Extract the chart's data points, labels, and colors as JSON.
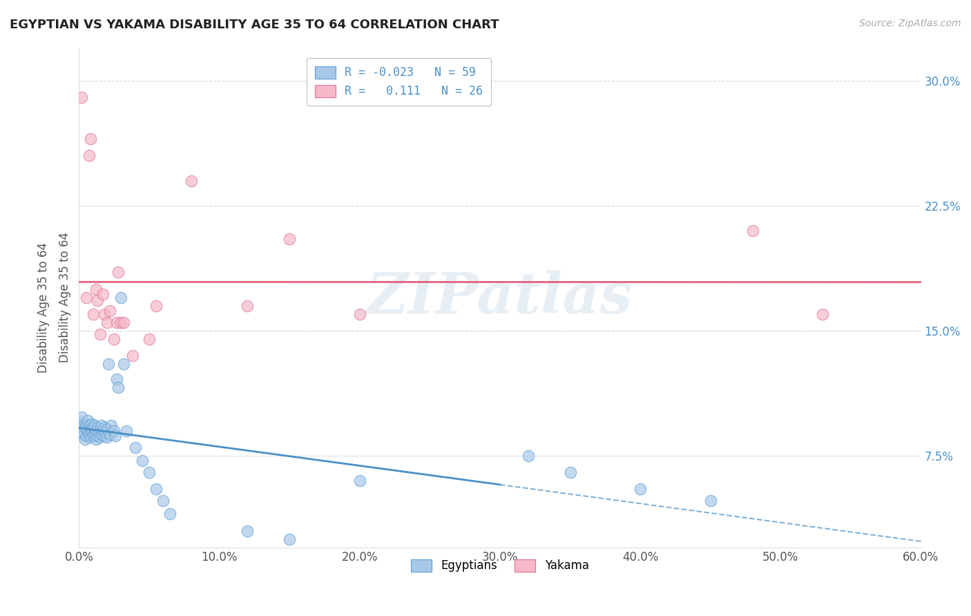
{
  "title": "EGYPTIAN VS YAKAMA DISABILITY AGE 35 TO 64 CORRELATION CHART",
  "source": "Source: ZipAtlas.com",
  "ylabel": "Disability Age 35 to 64",
  "xlim": [
    0.0,
    0.6
  ],
  "ylim": [
    0.02,
    0.32
  ],
  "xticks": [
    0.0,
    0.1,
    0.2,
    0.3,
    0.4,
    0.5,
    0.6
  ],
  "xticklabels": [
    "0.0%",
    "10.0%",
    "20.0%",
    "30.0%",
    "40.0%",
    "50.0%",
    "60.0%"
  ],
  "yticks": [
    0.075,
    0.15,
    0.225,
    0.3
  ],
  "yticklabels": [
    "7.5%",
    "15.0%",
    "22.5%",
    "30.0%"
  ],
  "egyptians_color": "#a8c8e8",
  "egyptians_edge": "#5a9fd4",
  "yakama_color": "#f5b8c8",
  "yakama_edge": "#e07090",
  "trend_egyptian_color": "#4a90c8",
  "trend_yakama_color": "#e06080",
  "R_egyptian": -0.023,
  "N_egyptian": 59,
  "R_yakama": 0.111,
  "N_yakama": 26,
  "watermark": "ZIPatlas",
  "background_color": "#ffffff",
  "grid_color": "#cccccc",
  "egyptians_x": [
    0.001,
    0.002,
    0.002,
    0.003,
    0.003,
    0.004,
    0.004,
    0.005,
    0.005,
    0.006,
    0.006,
    0.007,
    0.007,
    0.008,
    0.008,
    0.009,
    0.009,
    0.01,
    0.01,
    0.011,
    0.011,
    0.012,
    0.012,
    0.013,
    0.013,
    0.014,
    0.015,
    0.015,
    0.016,
    0.016,
    0.017,
    0.018,
    0.018,
    0.019,
    0.02,
    0.02,
    0.021,
    0.022,
    0.023,
    0.025,
    0.026,
    0.027,
    0.028,
    0.03,
    0.032,
    0.034,
    0.04,
    0.045,
    0.05,
    0.055,
    0.06,
    0.065,
    0.12,
    0.15,
    0.2,
    0.32,
    0.35,
    0.4,
    0.45
  ],
  "egyptians_y": [
    0.095,
    0.09,
    0.098,
    0.088,
    0.093,
    0.085,
    0.092,
    0.087,
    0.094,
    0.09,
    0.096,
    0.088,
    0.093,
    0.086,
    0.091,
    0.089,
    0.094,
    0.087,
    0.092,
    0.088,
    0.093,
    0.085,
    0.09,
    0.087,
    0.092,
    0.089,
    0.086,
    0.091,
    0.088,
    0.093,
    0.09,
    0.087,
    0.092,
    0.089,
    0.086,
    0.091,
    0.13,
    0.088,
    0.093,
    0.09,
    0.087,
    0.121,
    0.116,
    0.17,
    0.13,
    0.09,
    0.08,
    0.072,
    0.065,
    0.055,
    0.048,
    0.04,
    0.03,
    0.025,
    0.06,
    0.075,
    0.065,
    0.055,
    0.048
  ],
  "yakama_x": [
    0.002,
    0.005,
    0.007,
    0.008,
    0.01,
    0.012,
    0.013,
    0.015,
    0.017,
    0.018,
    0.02,
    0.022,
    0.025,
    0.027,
    0.028,
    0.03,
    0.032,
    0.038,
    0.05,
    0.055,
    0.08,
    0.12,
    0.15,
    0.2,
    0.48,
    0.53
  ],
  "yakama_y": [
    0.29,
    0.17,
    0.255,
    0.265,
    0.16,
    0.175,
    0.168,
    0.148,
    0.172,
    0.16,
    0.155,
    0.162,
    0.145,
    0.155,
    0.185,
    0.155,
    0.155,
    0.135,
    0.145,
    0.165,
    0.24,
    0.165,
    0.205,
    0.16,
    0.21,
    0.16
  ]
}
